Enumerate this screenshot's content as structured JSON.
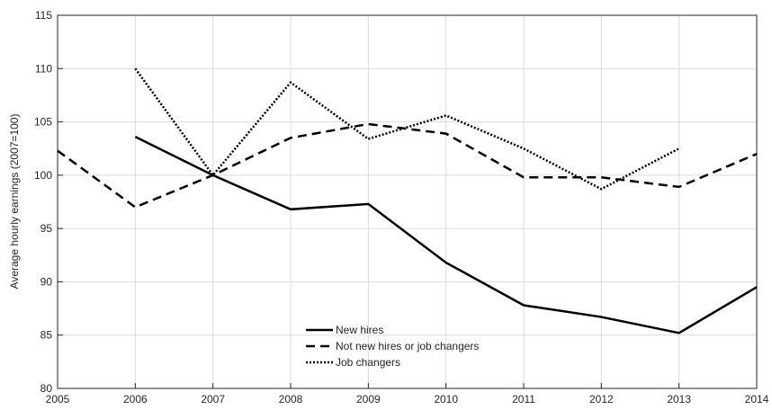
{
  "chart_data": {
    "type": "line",
    "y_label": "Average hourly earnings (2007=100)",
    "x": [
      2005,
      2006,
      2007,
      2008,
      2009,
      2010,
      2011,
      2012,
      2013,
      2014
    ],
    "series": [
      {
        "name": "New hires",
        "color": "#000000",
        "style": "solid",
        "values": [
          null,
          103.6,
          100,
          96.8,
          97.3,
          91.8,
          87.8,
          86.7,
          85.2,
          89.5
        ]
      },
      {
        "name": "Not new hires or job changers",
        "color": "#000000",
        "style": "dashed",
        "values": [
          102.3,
          97.0,
          100,
          103.5,
          104.8,
          103.9,
          99.8,
          99.8,
          98.9,
          102.0
        ]
      },
      {
        "name": "Job changers",
        "color": "#000000",
        "style": "dotted",
        "values": [
          null,
          110.0,
          100,
          108.7,
          103.4,
          105.6,
          102.5,
          98.7,
          102.5,
          null
        ]
      }
    ],
    "xlim": [
      2005,
      2014
    ],
    "xticks": [
      2005,
      2006,
      2007,
      2008,
      2009,
      2010,
      2011,
      2012,
      2013,
      2014
    ],
    "ylim": [
      80,
      115
    ],
    "yticks": [
      80,
      85,
      90,
      95,
      100,
      105,
      110,
      115
    ],
    "grid": true,
    "legend": "bottom-center"
  }
}
